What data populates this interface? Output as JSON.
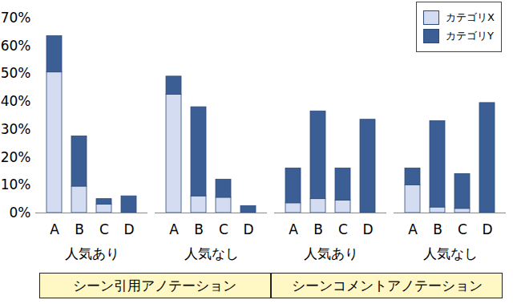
{
  "chart_data": {
    "type": "bar",
    "stacked": true,
    "grid": false,
    "legend": "top-right",
    "categories": [
      "A",
      "B",
      "C",
      "D"
    ],
    "groups": [
      {
        "label": "人気あり",
        "section": "シーン引用アノテーション"
      },
      {
        "label": "人気なし",
        "section": "シーン引用アノテーション"
      },
      {
        "label": "人気あり",
        "section": "シーンコメントアノテーション"
      },
      {
        "label": "人気なし",
        "section": "シーンコメントアノテーション"
      }
    ],
    "series": [
      {
        "name": "カテゴリX",
        "color": "#d3dcf0",
        "values": [
          [
            50.5,
            9.5,
            3,
            0
          ],
          [
            42.5,
            6,
            5.5,
            0
          ],
          [
            3.5,
            5,
            4.5,
            0
          ],
          [
            10,
            2,
            1.5,
            0
          ]
        ]
      },
      {
        "name": "カテゴリY",
        "color": "#3b5f95",
        "values": [
          [
            13,
            18,
            2,
            6
          ],
          [
            6.5,
            32,
            6.5,
            2.5
          ],
          [
            12.5,
            31.5,
            11.5,
            33.5
          ],
          [
            6,
            31,
            12.5,
            39.5
          ]
        ]
      }
    ],
    "ylim": [
      0,
      70
    ],
    "yticks": [
      {
        "value": 0,
        "label": "0%"
      },
      {
        "value": 10,
        "label": "10%"
      },
      {
        "value": 20,
        "label": "20%"
      },
      {
        "value": 30,
        "label": "30%"
      },
      {
        "value": 40,
        "label": "40%"
      },
      {
        "value": 50,
        "label": "50%"
      },
      {
        "value": 60,
        "label": "60%"
      },
      {
        "value": 70,
        "label": "70%"
      }
    ]
  }
}
